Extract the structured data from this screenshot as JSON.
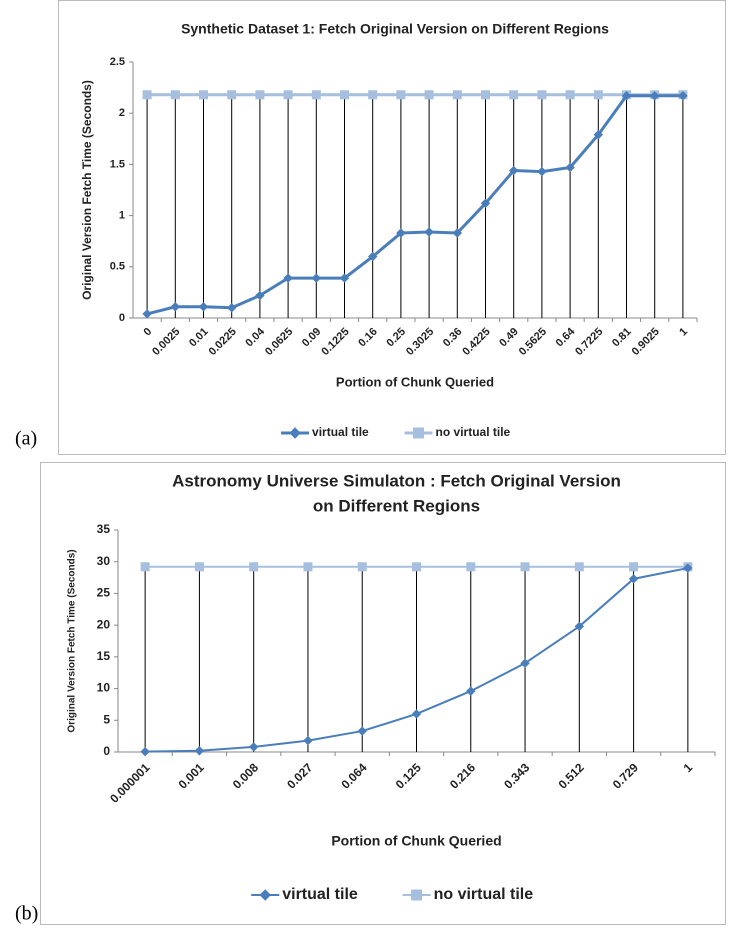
{
  "chart_data": [
    {
      "type": "line",
      "label": "(a)",
      "title": [
        "Synthetic Dataset 1: Fetch Original Version on Different Regions"
      ],
      "x_label": "Portion of Chunk Queried",
      "y_label": "Original Version Fetch Time (Seconds)",
      "categories": [
        "0",
        "0.0025",
        "0.01",
        "0.0225",
        "0.04",
        "0.0625",
        "0.09",
        "0.1225",
        "0.16",
        "0.25",
        "0.3025",
        "0.36",
        "0.4225",
        "0.49",
        "0.5625",
        "0.64",
        "0.7225",
        "0.81",
        "0.9025",
        "1"
      ],
      "series": [
        {
          "name": "virtual tile",
          "color": "#4a7ebb",
          "marker": "diamond",
          "values": [
            0.04,
            0.11,
            0.11,
            0.1,
            0.22,
            0.39,
            0.39,
            0.39,
            0.6,
            0.83,
            0.84,
            0.83,
            1.12,
            1.44,
            1.43,
            1.47,
            1.79,
            2.17,
            2.17,
            2.17
          ]
        },
        {
          "name": "no virtual tile",
          "color": "#a7bfde",
          "marker": "square",
          "values": [
            2.18,
            2.18,
            2.18,
            2.18,
            2.18,
            2.18,
            2.18,
            2.18,
            2.18,
            2.18,
            2.18,
            2.18,
            2.18,
            2.18,
            2.18,
            2.18,
            2.18,
            2.18,
            2.18,
            2.18
          ]
        }
      ],
      "ylim": [
        0,
        2.5
      ],
      "yticks": [
        0,
        0.5,
        1,
        1.5,
        2,
        2.5
      ],
      "grid": false,
      "drop_lines": true,
      "legend": "bottom"
    },
    {
      "type": "line",
      "label": "(b)",
      "title": [
        "Astronomy Universe Simulaton : Fetch Original Version",
        "on Different Regions"
      ],
      "x_label": "Portion of Chunk Queried",
      "y_label": "Original Version Fetch Time (Seconds)",
      "categories": [
        "0.000001",
        "0.001",
        "0.008",
        "0.027",
        "0.064",
        "0.125",
        "0.216",
        "0.343",
        "0.512",
        "0.729",
        "1"
      ],
      "series": [
        {
          "name": "virtual tile",
          "color": "#4a7ebb",
          "marker": "diamond",
          "values": [
            0.05,
            0.2,
            0.8,
            1.8,
            3.3,
            6,
            9.6,
            14,
            19.8,
            27.3,
            29
          ]
        },
        {
          "name": "no virtual tile",
          "color": "#a7bfde",
          "marker": "square",
          "values": [
            29.2,
            29.2,
            29.2,
            29.2,
            29.2,
            29.2,
            29.2,
            29.2,
            29.2,
            29.2,
            29.2
          ]
        }
      ],
      "ylim": [
        0,
        35
      ],
      "yticks": [
        0,
        5,
        10,
        15,
        20,
        25,
        30,
        35
      ],
      "grid": false,
      "drop_lines": true,
      "legend": "bottom"
    }
  ]
}
